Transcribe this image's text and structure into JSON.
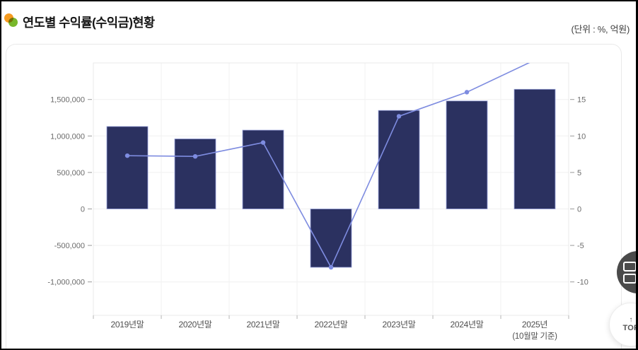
{
  "page": {
    "title": "연도별 수익률(수익금)현황",
    "unit_label": "(단위 : %, 억원)"
  },
  "floating": {
    "top_button_arrow": "↑",
    "top_button_label": "TOP"
  },
  "chart_data": {
    "type": "bar",
    "subtype": "combo-bar-line-dual-axis",
    "title": "연도별 수익률(수익금)현황",
    "unit": "%, 억원",
    "categories": [
      "2019년말",
      "2020년말",
      "2021년말",
      "2022년말",
      "2023년말",
      "2024년말",
      "2025년"
    ],
    "category_sublabels": [
      "",
      "",
      "",
      "",
      "",
      "",
      "(10월말 기준)"
    ],
    "series": [
      {
        "name": "수익금",
        "type": "bar",
        "axis": "left",
        "unit": "억원",
        "values": [
          1130000,
          960000,
          1080000,
          -800000,
          1350000,
          1480000,
          1640000
        ]
      },
      {
        "name": "수익률",
        "type": "line",
        "axis": "right",
        "unit": "%",
        "values": [
          7.3,
          7.2,
          9.1,
          -8.0,
          12.7,
          16.0,
          20.4
        ]
      }
    ],
    "left_axis": {
      "ticks": [
        -1000000,
        -500000,
        0,
        500000,
        1000000,
        1500000
      ],
      "range": [
        -1458000,
        2000000
      ]
    },
    "right_axis": {
      "ticks": [
        -10,
        -5,
        0,
        5,
        10,
        15
      ],
      "range": [
        -14.58,
        20
      ]
    },
    "grid": true,
    "legend": "none",
    "colors": {
      "bar_fill": "#2b3160",
      "bar_border": "#9aa3dc",
      "line": "#7e8ce0",
      "grid": "#f0f0f0",
      "plot_border": "#e8e8e8",
      "tick_mark": "#9a9a9a",
      "axis_text": "#6b6b6b"
    }
  }
}
